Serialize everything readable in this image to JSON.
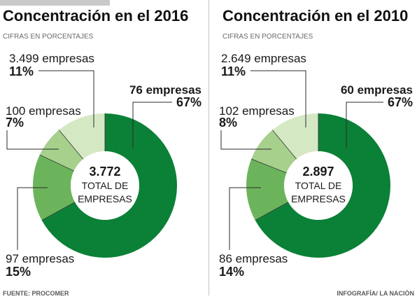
{
  "chart_data": [
    {
      "type": "pie",
      "donut": true,
      "title": "Concentración en el 2016",
      "subtitle": "CIFRAS EN PORCENTAJES",
      "center": {
        "total": "3.772",
        "line1": "TOTAL DE",
        "line2": "EMPRESAS"
      },
      "slices": [
        {
          "label": "76 empresas",
          "value": 67,
          "value_label": "67%",
          "color": "#0b8037"
        },
        {
          "label": "97 empresas",
          "value": 15,
          "value_label": "15%",
          "color": "#6cb45b"
        },
        {
          "label": "100 empresas",
          "value": 7,
          "value_label": "7%",
          "color": "#a7d08d"
        },
        {
          "label": "3.499 empresas",
          "value": 11,
          "value_label": "11%",
          "color": "#d5e8c4"
        }
      ]
    },
    {
      "type": "pie",
      "donut": true,
      "title": "Concentración en el 2010",
      "subtitle": "CIFRAS EN PORCENTAJES",
      "center": {
        "total": "2.897",
        "line1": "TOTAL DE",
        "line2": "EMPRESAS"
      },
      "slices": [
        {
          "label": "60 empresas",
          "value": 67,
          "value_label": "67%",
          "color": "#0b8037"
        },
        {
          "label": "86 empresas",
          "value": 14,
          "value_label": "14%",
          "color": "#6cb45b"
        },
        {
          "label": "102 empresas",
          "value": 8,
          "value_label": "8%",
          "color": "#a7d08d"
        },
        {
          "label": "2.649 empresas",
          "value": 11,
          "value_label": "11%",
          "color": "#d5e8c4"
        }
      ]
    }
  ],
  "footer": {
    "source": "FUENTE: PROCOMER",
    "credit": "INFOGRAFÍA/ LA NACIÓN"
  }
}
